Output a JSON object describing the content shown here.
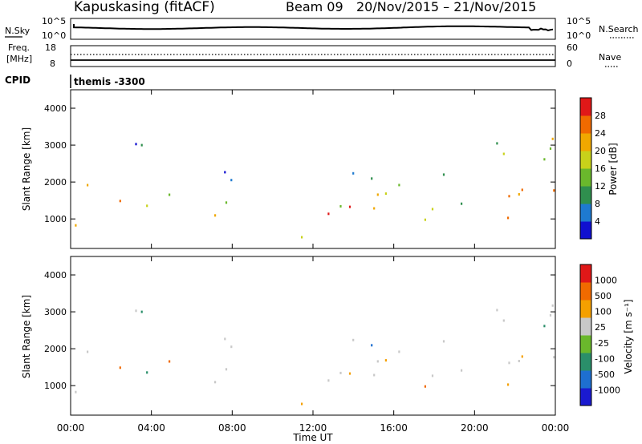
{
  "header": {
    "station": "Kapuskasing (fitACF)",
    "beam": "Beam 09",
    "dates": "20/Nov/2015 – 21/Nov/2015",
    "cpid_label": "CPID",
    "cpid_value": "themis -3300"
  },
  "top_panels": {
    "nsky": {
      "label": "N.Sky",
      "scale_top": "10^5",
      "scale_bottom": "10^0",
      "right_label": "N.Search",
      "right_top": "10^5",
      "right_bottom": "10^0"
    },
    "freq": {
      "label_line1": "Freq.",
      "label_line2": "[MHz]",
      "left_top": "18",
      "left_bottom": "8",
      "right_label": "Nave",
      "right_top": "60",
      "right_bottom": "0"
    }
  },
  "chart_data": [
    {
      "type": "heatmap",
      "title": "",
      "ylabel": "Slant Range [km]",
      "xlabel": "",
      "ylim": [
        200,
        4500
      ],
      "yticks": [
        "1000",
        "2000",
        "3000",
        "4000"
      ],
      "colorbar": {
        "label": "Power [dB]",
        "ticks": [
          "4",
          "8",
          "12",
          "16",
          "20",
          "24",
          "28"
        ],
        "colors": [
          "#1010d0",
          "#1e7ad0",
          "#2f8f4e",
          "#6ab82c",
          "#c8d21a",
          "#f0a800",
          "#f06a00",
          "#e01818"
        ]
      }
    },
    {
      "type": "heatmap",
      "title": "",
      "ylabel": "Slant Range [km]",
      "xlabel": "Time UT",
      "ylim": [
        200,
        4500
      ],
      "yticks": [
        "1000",
        "2000",
        "3000",
        "4000"
      ],
      "xticks": [
        "00:00",
        "04:00",
        "08:00",
        "12:00",
        "16:00",
        "20:00",
        "00:00"
      ],
      "colorbar": {
        "label": "Velocity [m s⁻¹]",
        "ticks": [
          "1000",
          "500",
          "100",
          "25",
          "-25",
          "-100",
          "-500",
          "-1000"
        ],
        "colors": [
          "#1a1ad0",
          "#1e6fd0",
          "#2a8f6a",
          "#6ab82c",
          "#c8c8c8",
          "#f5a000",
          "#f06a00",
          "#e01818"
        ]
      }
    }
  ]
}
